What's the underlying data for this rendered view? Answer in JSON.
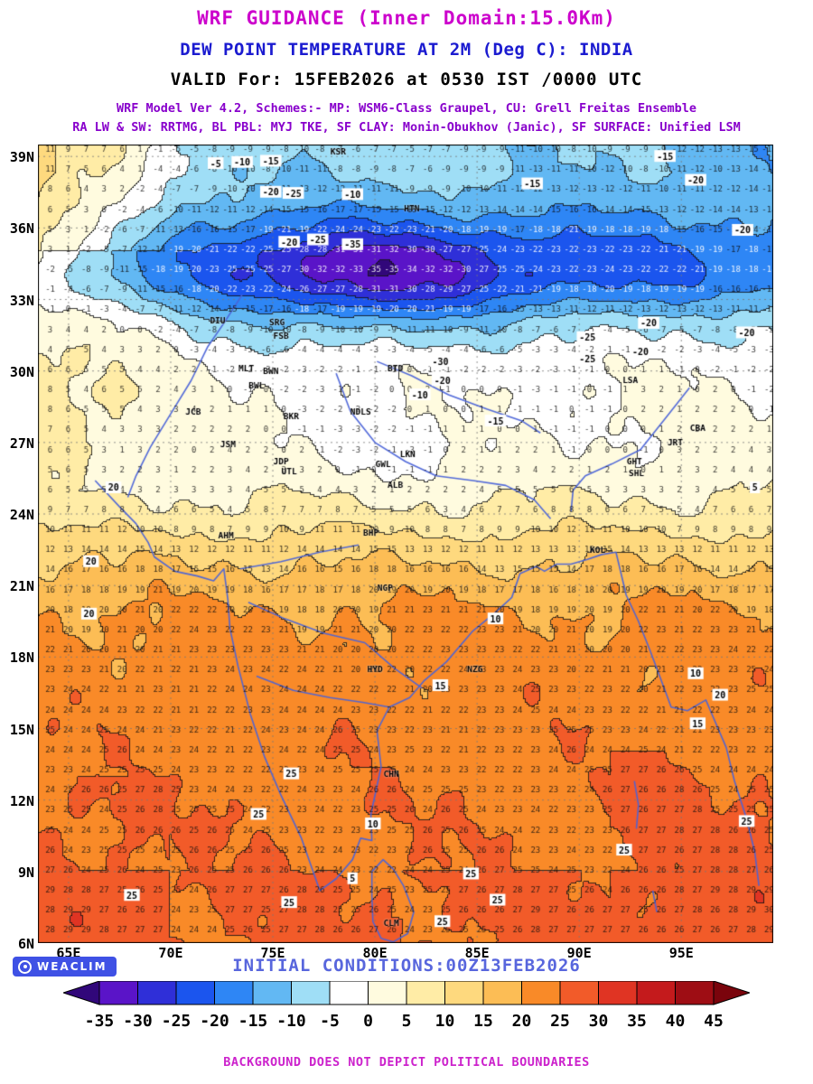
{
  "header": {
    "title1": "WRF GUIDANCE (Inner Domain:15.0Km)",
    "title2": "DEW POINT TEMPERATURE AT 2M (Deg C): INDIA",
    "title3": "VALID For: 15FEB2026 at 0530 IST /0000 UTC",
    "model_line1": "WRF Model Ver 4.2, Schemes:- MP: WSM6-Class Graupel, CU: Grell Freitas Ensemble",
    "model_line2": "RA LW & SW: RRTMG, BL PBL: MYJ TKE, SF CLAY: Monin-Obukhov (Janic), SF SURFACE: Unified LSM"
  },
  "footer": {
    "logo_text": "WEACLIM",
    "initial_conditions": "INITIAL CONDITIONS:00Z13FEB2026",
    "disclaimer": "BACKGROUND DOES NOT DEPICT POLITICAL BOUNDARIES"
  },
  "chart_data": {
    "type": "heatmap",
    "title": "DEW POINT TEMPERATURE AT 2M (Deg C): INDIA",
    "units": "Deg C",
    "lon_range": [
      63.5,
      99.5
    ],
    "lat_range": [
      6,
      39.5
    ],
    "lon_ticks": [
      {
        "label": "65E",
        "lon": 65
      },
      {
        "label": "70E",
        "lon": 70
      },
      {
        "label": "75E",
        "lon": 75
      },
      {
        "label": "80E",
        "lon": 80
      },
      {
        "label": "85E",
        "lon": 85
      },
      {
        "label": "90E",
        "lon": 90
      },
      {
        "label": "95E",
        "lon": 95
      }
    ],
    "lat_ticks": [
      {
        "label": "39N",
        "lat": 39
      },
      {
        "label": "36N",
        "lat": 36
      },
      {
        "label": "33N",
        "lat": 33
      },
      {
        "label": "30N",
        "lat": 30
      },
      {
        "label": "27N",
        "lat": 27
      },
      {
        "label": "24N",
        "lat": 24
      },
      {
        "label": "21N",
        "lat": 21
      },
      {
        "label": "18N",
        "lat": 18
      },
      {
        "label": "15N",
        "lat": 15
      },
      {
        "label": "12N",
        "lat": 12
      },
      {
        "label": "9N",
        "lat": 9
      },
      {
        "label": "6N",
        "lat": 6
      }
    ],
    "colorbar": {
      "levels": [
        -35,
        -30,
        -25,
        -20,
        -15,
        -10,
        -5,
        0,
        5,
        10,
        15,
        20,
        25,
        30,
        35,
        40,
        45
      ],
      "colors": [
        "#31077a",
        "#5a14c8",
        "#2f2fd8",
        "#1b55ee",
        "#2e86f5",
        "#62b8f3",
        "#9fdef6",
        "#ffffff",
        "#fffbdf",
        "#ffeca6",
        "#fed97e",
        "#fcbd55",
        "#f98a28",
        "#f25b29",
        "#e03423",
        "#c41a1c",
        "#9e0d14",
        "#7a040c"
      ]
    },
    "field_model": {
      "lat_profile": [
        [
          6,
          24.5
        ],
        [
          12,
          24
        ],
        [
          17,
          22.5
        ],
        [
          19.5,
          21
        ],
        [
          21,
          18
        ],
        [
          22.5,
          13
        ],
        [
          24,
          7
        ],
        [
          25.5,
          3
        ],
        [
          27,
          1
        ],
        [
          29,
          0.5
        ],
        [
          30.5,
          -1
        ],
        [
          32,
          -5
        ],
        [
          33,
          -11
        ],
        [
          34,
          -16
        ],
        [
          35,
          -17
        ],
        [
          36,
          -14
        ],
        [
          37,
          -11
        ],
        [
          38,
          -9
        ],
        [
          39.5,
          -7.5
        ]
      ]
    },
    "grid_numbers": {
      "lon_start": 64.1,
      "lon_step": 0.88,
      "lat_start": 6.55,
      "lat_step": 0.84
    },
    "cities": [
      {
        "code": "KSR",
        "lon": 78.2,
        "lat": 39.2
      },
      {
        "code": "HTN",
        "lon": 81.8,
        "lat": 36.8
      },
      {
        "code": "SRG",
        "lon": 75.2,
        "lat": 32.05
      },
      {
        "code": "FSB",
        "lon": 75.4,
        "lat": 31.45
      },
      {
        "code": "DIU",
        "lon": 72.3,
        "lat": 32.1
      },
      {
        "code": "MLT",
        "lon": 73.7,
        "lat": 30.1
      },
      {
        "code": "BTD",
        "lon": 81.0,
        "lat": 30.1
      },
      {
        "code": "BWL",
        "lon": 74.2,
        "lat": 29.4
      },
      {
        "code": "BWN",
        "lon": 74.9,
        "lat": 30.0
      },
      {
        "code": "JCB",
        "lon": 71.1,
        "lat": 28.3
      },
      {
        "code": "BKR",
        "lon": 75.9,
        "lat": 28.1
      },
      {
        "code": "NDLS",
        "lon": 79.3,
        "lat": 28.3
      },
      {
        "code": "JSM",
        "lon": 72.8,
        "lat": 26.9
      },
      {
        "code": "JDP",
        "lon": 75.4,
        "lat": 26.2
      },
      {
        "code": "UTL",
        "lon": 75.8,
        "lat": 25.8
      },
      {
        "code": "LKN",
        "lon": 81.6,
        "lat": 26.5
      },
      {
        "code": "GWL",
        "lon": 80.4,
        "lat": 26.1
      },
      {
        "code": "ALB",
        "lon": 81.0,
        "lat": 25.2
      },
      {
        "code": "GHT",
        "lon": 92.7,
        "lat": 26.2
      },
      {
        "code": "SHL",
        "lon": 92.8,
        "lat": 25.7
      },
      {
        "code": "LSA",
        "lon": 92.5,
        "lat": 29.6
      },
      {
        "code": "CBA",
        "lon": 95.8,
        "lat": 27.6
      },
      {
        "code": "JRT",
        "lon": 94.7,
        "lat": 27.0
      },
      {
        "code": "BHP",
        "lon": 79.8,
        "lat": 23.2
      },
      {
        "code": "AHM",
        "lon": 72.7,
        "lat": 23.1
      },
      {
        "code": "KOL",
        "lon": 90.9,
        "lat": 22.5
      },
      {
        "code": "NGP",
        "lon": 80.5,
        "lat": 20.9
      },
      {
        "code": "HYD",
        "lon": 80.0,
        "lat": 17.5
      },
      {
        "code": "NZG",
        "lon": 84.9,
        "lat": 17.5
      },
      {
        "code": "CHN",
        "lon": 80.8,
        "lat": 13.1
      },
      {
        "code": "CLM",
        "lon": 80.8,
        "lat": 6.85
      }
    ],
    "contour_labels": [
      {
        "text": "-5",
        "lon": 72.2,
        "lat": 38.7
      },
      {
        "text": "-10",
        "lon": 73.5,
        "lat": 38.75
      },
      {
        "text": "-15",
        "lon": 74.9,
        "lat": 38.8
      },
      {
        "text": "-20",
        "lon": 74.9,
        "lat": 37.5
      },
      {
        "text": "-25",
        "lon": 76.0,
        "lat": 37.45
      },
      {
        "text": "-10",
        "lon": 78.9,
        "lat": 37.4
      },
      {
        "text": "-15",
        "lon": 87.7,
        "lat": 37.85
      },
      {
        "text": "-15",
        "lon": 94.2,
        "lat": 39.0
      },
      {
        "text": "-20",
        "lon": 95.7,
        "lat": 38.0
      },
      {
        "text": "-20",
        "lon": 75.8,
        "lat": 35.4
      },
      {
        "text": "-25",
        "lon": 77.2,
        "lat": 35.5
      },
      {
        "text": "-35",
        "lon": 78.9,
        "lat": 35.3
      },
      {
        "text": "-20",
        "lon": 98.0,
        "lat": 35.9
      },
      {
        "text": "-25",
        "lon": 90.4,
        "lat": 31.4
      },
      {
        "text": "-20",
        "lon": 93.4,
        "lat": 32.0
      },
      {
        "text": "-30",
        "lon": 83.2,
        "lat": 30.4
      },
      {
        "text": "-20",
        "lon": 83.3,
        "lat": 29.6
      },
      {
        "text": "-10",
        "lon": 82.2,
        "lat": 29.0
      },
      {
        "text": "-25",
        "lon": 90.4,
        "lat": 30.5
      },
      {
        "text": "-20",
        "lon": 93.0,
        "lat": 30.8
      },
      {
        "text": "-20",
        "lon": 98.2,
        "lat": 31.6
      },
      {
        "text": "-15",
        "lon": 85.9,
        "lat": 27.9
      },
      {
        "text": "20",
        "lon": 67.2,
        "lat": 25.1
      },
      {
        "text": "20",
        "lon": 66.1,
        "lat": 22.0
      },
      {
        "text": "20",
        "lon": 66.0,
        "lat": 19.8
      },
      {
        "text": "5",
        "lon": 98.6,
        "lat": 25.1
      },
      {
        "text": "10",
        "lon": 85.9,
        "lat": 19.6
      },
      {
        "text": "15",
        "lon": 83.2,
        "lat": 16.8
      },
      {
        "text": "10",
        "lon": 95.7,
        "lat": 17.3
      },
      {
        "text": "20",
        "lon": 96.9,
        "lat": 16.4
      },
      {
        "text": "15",
        "lon": 95.8,
        "lat": 15.2
      },
      {
        "text": "25",
        "lon": 75.9,
        "lat": 13.1
      },
      {
        "text": "10",
        "lon": 79.9,
        "lat": 11.0
      },
      {
        "text": "5",
        "lon": 78.9,
        "lat": 8.7
      },
      {
        "text": "25",
        "lon": 68.1,
        "lat": 8.0
      },
      {
        "text": "25",
        "lon": 74.3,
        "lat": 11.4
      },
      {
        "text": "25",
        "lon": 75.8,
        "lat": 7.7
      },
      {
        "text": "25",
        "lon": 83.3,
        "lat": 6.9
      },
      {
        "text": "25",
        "lon": 84.7,
        "lat": 8.9
      },
      {
        "text": "25",
        "lon": 86.0,
        "lat": 7.8
      },
      {
        "text": "25",
        "lon": 92.2,
        "lat": 9.9
      },
      {
        "text": "25",
        "lon": 98.2,
        "lat": 11.1
      }
    ],
    "boundaries": [
      [
        [
          66.3,
          25.4
        ],
        [
          67.5,
          24.3
        ],
        [
          68.3,
          23.6
        ],
        [
          68.9,
          22.8
        ],
        [
          69.2,
          22.2
        ],
        [
          70.2,
          21.6
        ],
        [
          71.3,
          21.4
        ],
        [
          72.1,
          21.2
        ],
        [
          72.6,
          21.7
        ],
        [
          72.8,
          20.4
        ],
        [
          72.9,
          19.2
        ],
        [
          73.3,
          17.6
        ],
        [
          73.9,
          15.6
        ],
        [
          74.6,
          13.8
        ],
        [
          75.4,
          12.2
        ],
        [
          76.4,
          10.4
        ],
        [
          77.3,
          8.2
        ],
        [
          78.1,
          8.7
        ],
        [
          78.9,
          9.5
        ],
        [
          79.3,
          10.4
        ],
        [
          79.85,
          10.3
        ],
        [
          79.8,
          11.4
        ],
        [
          80.3,
          13.4
        ],
        [
          80.1,
          14.9
        ],
        [
          80.7,
          15.9
        ],
        [
          81.7,
          16.3
        ],
        [
          82.4,
          17.0
        ],
        [
          83.5,
          17.8
        ],
        [
          84.8,
          19.1
        ],
        [
          85.8,
          19.8
        ],
        [
          86.7,
          20.5
        ],
        [
          87.1,
          21.5
        ],
        [
          87.9,
          21.8
        ],
        [
          88.3,
          21.6
        ],
        [
          88.9,
          21.9
        ],
        [
          89.6,
          21.9
        ],
        [
          90.4,
          22.1
        ],
        [
          91.1,
          22.3
        ],
        [
          91.8,
          22.4
        ],
        [
          92.05,
          21.5
        ],
        [
          92.3,
          20.6
        ],
        [
          92.9,
          19.5
        ],
        [
          93.5,
          18.2
        ],
        [
          94.2,
          16.6
        ],
        [
          94.5,
          15.9
        ],
        [
          95.3,
          15.75
        ],
        [
          96.2,
          16.2
        ],
        [
          96.6,
          15.4
        ],
        [
          97.2,
          14.2
        ],
        [
          97.6,
          12.8
        ],
        [
          98.2,
          11.2
        ],
        [
          98.6,
          9.8
        ],
        [
          98.8,
          8.4
        ]
      ],
      [
        [
          79.85,
          9.0
        ],
        [
          80.4,
          9.5
        ],
        [
          80.9,
          9.1
        ],
        [
          81.4,
          8.4
        ],
        [
          81.9,
          7.3
        ],
        [
          81.6,
          6.4
        ],
        [
          80.9,
          6.05
        ],
        [
          80.3,
          6.2
        ],
        [
          79.9,
          6.9
        ],
        [
          79.85,
          8.0
        ],
        [
          79.85,
          9.0
        ]
      ],
      [
        [
          73.5,
          33.2
        ],
        [
          72.6,
          32.0
        ],
        [
          71.8,
          31.0
        ],
        [
          71.0,
          29.6
        ],
        [
          70.0,
          28.2
        ],
        [
          69.0,
          26.8
        ],
        [
          68.3,
          25.6
        ],
        [
          67.9,
          24.7
        ]
      ],
      [
        [
          78.1,
          29.9
        ],
        [
          78.8,
          28.3
        ],
        [
          80.0,
          27.0
        ],
        [
          81.5,
          26.2
        ],
        [
          83.0,
          25.6
        ],
        [
          84.8,
          25.4
        ],
        [
          86.4,
          25.2
        ],
        [
          87.8,
          24.6
        ],
        [
          88.6,
          23.8
        ]
      ],
      [
        [
          95.4,
          29.3
        ],
        [
          94.3,
          28.1
        ],
        [
          93.0,
          26.7
        ],
        [
          91.6,
          26.1
        ],
        [
          90.3,
          25.6
        ],
        [
          89.7,
          25.0
        ],
        [
          89.6,
          24.1
        ]
      ],
      [
        [
          73.8,
          20.3
        ],
        [
          75.6,
          19.6
        ],
        [
          77.5,
          19.0
        ],
        [
          79.5,
          18.6
        ],
        [
          81.0,
          17.5
        ],
        [
          82.3,
          16.7
        ]
      ],
      [
        [
          74.2,
          17.2
        ],
        [
          76.0,
          16.6
        ],
        [
          77.8,
          16.3
        ],
        [
          79.4,
          16.1
        ],
        [
          80.7,
          15.9
        ]
      ],
      [
        [
          79.2,
          22.7
        ],
        [
          77.3,
          22.4
        ],
        [
          75.4,
          22.0
        ],
        [
          73.4,
          21.7
        ]
      ],
      [
        [
          80.1,
          30.4
        ],
        [
          81.8,
          29.8
        ],
        [
          83.6,
          29.0
        ],
        [
          85.5,
          28.4
        ],
        [
          87.2,
          27.9
        ],
        [
          88.1,
          27.4
        ]
      ],
      [
        [
          92.7,
          12.8
        ],
        [
          92.9,
          11.8
        ],
        [
          92.8,
          10.8
        ]
      ],
      [
        [
          93.6,
          8.2
        ],
        [
          93.8,
          7.3
        ]
      ]
    ]
  }
}
